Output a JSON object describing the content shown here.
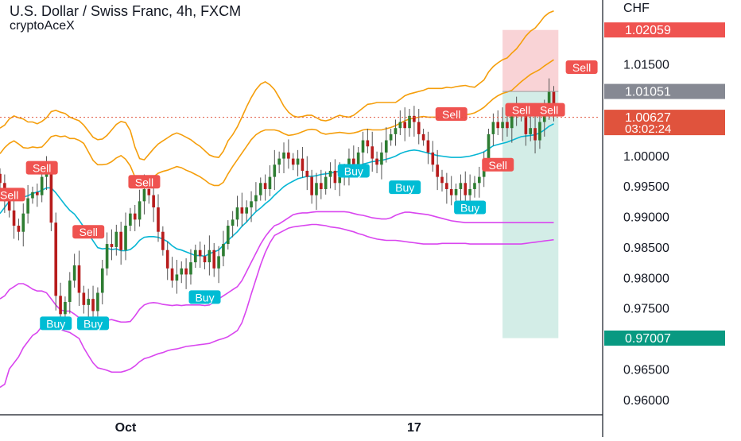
{
  "header": {
    "title": "U.S. Dollar / Swiss Franc, 4h, FXCM",
    "author": "cryptoAceX",
    "currency": "CHF"
  },
  "colors": {
    "up": "#26a69a",
    "down": "#ef5350",
    "candle": "#2e7d32",
    "candle_down": "#b71c1c",
    "upper_band": "#f59e0b",
    "mid_band": "#06b6d4",
    "lower_band": "#d946ef",
    "sell_tag": "#ef5350",
    "buy_tag": "#00bcd4",
    "stop_zone": "#f8c8cc",
    "target_zone": "#c8e9e1"
  },
  "chart_data": {
    "type": "candlestick",
    "ylim": [
      0.9575,
      1.0255
    ],
    "xlim": [
      0,
      129
    ],
    "y_ticks": [
      0.96,
      0.965,
      0.97,
      0.975,
      0.98,
      0.985,
      0.99,
      0.995,
      1.0,
      1.005,
      1.01,
      1.015,
      1.02
    ],
    "y_tick_labels": [
      "0.96000",
      "0.96500",
      "0.97000",
      "0.97500",
      "0.98000",
      "0.98500",
      "0.99000",
      "0.99500",
      "1.00000",
      "",
      "",
      "1.01500",
      ""
    ],
    "x_tick_labels": [
      {
        "label": "Oct",
        "x": 27
      },
      {
        "label": "17",
        "x": 89
      }
    ],
    "price_labels": [
      {
        "value": 1.02059,
        "text": "1.02059",
        "color": "#ef5350"
      },
      {
        "value": 1.01051,
        "text": "1.01051",
        "color": "#868993"
      },
      {
        "value": 1.00627,
        "text": "1.00627",
        "extra": "03:02:24",
        "color": "#e0533d"
      },
      {
        "value": 0.97007,
        "text": "0.97007",
        "color": "#089981"
      }
    ],
    "current_price": 1.00627,
    "position": {
      "x_start": 108,
      "x_end": 120,
      "entry": 1.01051,
      "stop": 1.02059,
      "target": 0.97007
    },
    "close": [
      0.9955,
      0.9925,
      0.991,
      0.9885,
      0.9875,
      0.9905,
      0.993,
      0.994,
      0.9935,
      0.9965,
      0.9975,
      0.989,
      0.977,
      0.974,
      0.976,
      0.9795,
      0.982,
      0.9775,
      0.9755,
      0.9765,
      0.9745,
      0.9775,
      0.9815,
      0.9855,
      0.985,
      0.9875,
      0.9845,
      0.9885,
      0.9905,
      0.9895,
      0.9925,
      0.9945,
      0.9935,
      0.9915,
      0.9875,
      0.9845,
      0.9815,
      0.9795,
      0.9805,
      0.9815,
      0.9805,
      0.9825,
      0.9845,
      0.9835,
      0.9825,
      0.9845,
      0.9815,
      0.9835,
      0.9855,
      0.9885,
      0.9895,
      0.9915,
      0.9905,
      0.9915,
      0.9925,
      0.9935,
      0.9955,
      0.9945,
      0.9965,
      0.9985,
      0.9995,
      1.0005,
      0.9995,
      0.9985,
      0.9995,
      0.9975,
      0.9965,
      0.9935,
      0.9955,
      0.9945,
      0.9965,
      0.9975,
      0.9955,
      0.9965,
      0.9975,
      0.9995,
      0.9985,
      1.0005,
      1.0025,
      1.0015,
      0.9995,
      0.9985,
      1.0005,
      1.0025,
      1.0035,
      1.0045,
      1.0055,
      1.0045,
      1.0065,
      1.0055,
      1.0035,
      1.0025,
      1.0005,
      0.9985,
      0.9965,
      0.9955,
      0.9945,
      0.9935,
      0.9945,
      0.9955,
      0.9935,
      0.9945,
      0.9955,
      0.9965,
      0.9985,
      1.0035,
      1.0055,
      1.0045,
      1.0055,
      1.0045,
      1.0065,
      1.0075,
      1.0065,
      1.0035,
      1.0045,
      1.0025,
      1.0055,
      1.0075,
      1.0105,
      1.0065
    ]
  },
  "bands": {
    "upper": [
      1.0045,
      1.005,
      1.006,
      1.0065,
      1.0062,
      1.006,
      1.0055,
      1.0055,
      1.0052,
      1.0056,
      1.0062,
      1.0072,
      1.0074,
      1.0071,
      1.0069,
      1.0063,
      1.006,
      1.0057,
      1.005,
      1.004,
      1.003,
      1.0026,
      1.0027,
      1.0033,
      1.0042,
      1.0051,
      1.0056,
      1.0054,
      1.0041,
      1.0014,
      0.9995,
      0.9993,
      1.0002,
      1.0011,
      1.0019,
      1.0024,
      1.0029,
      1.0034,
      1.0037,
      1.0034,
      1.003,
      1.0026,
      1.002,
      1.0015,
      1.0008,
      1.0001,
      0.9998,
      0.9997,
      1.0007,
      1.0024,
      1.0034,
      1.0047,
      1.0063,
      1.008,
      1.0095,
      1.0108,
      1.0117,
      1.0121,
      1.0116,
      1.0108,
      1.0095,
      1.0081,
      1.0071,
      1.0065,
      1.0063,
      1.0064,
      1.0066,
      1.0066,
      1.0062,
      1.0058,
      1.0057,
      1.0059,
      1.0063,
      1.0066,
      1.0064,
      1.0063,
      1.0066,
      1.0072,
      1.0078,
      1.0084,
      1.0085,
      1.0087,
      1.0087,
      1.0087,
      1.0087,
      1.0087,
      1.0092,
      1.0098,
      1.0101,
      1.0103,
      1.0105,
      1.0107,
      1.011,
      1.011,
      1.011,
      1.011,
      1.0112,
      1.0111,
      1.0113,
      1.0114,
      1.0115,
      1.0113,
      1.0112,
      1.0118,
      1.0124,
      1.0137,
      1.0146,
      1.0152,
      1.0157,
      1.016,
      1.0168,
      1.0175,
      1.0185,
      1.0196,
      1.0204,
      1.0209,
      1.0218,
      1.0228,
      1.0234,
      1.0237
    ],
    "lower_upper": [
      1.0003,
      1.0013,
      1.002,
      1.0024,
      1.0019,
      1.0013,
      1.0012,
      1.0014,
      1.0013,
      1.0014,
      1.0022,
      1.0031,
      1.0033,
      1.0031,
      1.0032,
      1.0028,
      1.0028,
      1.0025,
      1.002,
      1.0006,
      0.9992,
      0.9985,
      0.9985,
      0.9986,
      0.999,
      0.9996,
      1.0,
      0.9994,
      0.9983,
      0.9965,
      0.9949,
      0.9948,
      0.9956,
      0.9965,
      0.9971,
      0.9974,
      0.9976,
      0.9979,
      0.9982,
      0.998,
      0.9976,
      0.9973,
      0.9969,
      0.9965,
      0.996,
      0.9954,
      0.9951,
      0.9951,
      0.9956,
      0.997,
      0.9982,
      0.9993,
      1.0004,
      1.0015,
      1.0026,
      1.0034,
      1.0039,
      1.0042,
      1.0042,
      1.0042,
      1.004,
      1.0036,
      1.0033,
      1.0034,
      1.0036,
      1.0039,
      1.0042,
      1.0043,
      1.0042,
      1.0037,
      1.0035,
      1.0036,
      1.0037,
      1.0038,
      1.0037,
      1.0036,
      1.0037,
      1.0039,
      1.0042,
      1.0043,
      1.0042,
      1.0042,
      1.0042,
      1.0044,
      1.0046,
      1.0049,
      1.0053,
      1.0057,
      1.006,
      1.0061,
      1.0063,
      1.0064,
      1.0063,
      1.0063,
      1.0063,
      1.0064,
      1.0065,
      1.0066,
      1.0066,
      1.0066,
      1.0067,
      1.0068,
      1.007,
      1.0074,
      1.0079,
      1.0086,
      1.0093,
      1.0098,
      1.0102,
      1.0104,
      1.0107,
      1.0114,
      1.0121,
      1.0127,
      1.0133,
      1.0137,
      1.0141,
      1.0147,
      1.0152,
      1.0157
    ],
    "mid": [
      0.9905,
      0.9915,
      0.9925,
      0.993,
      0.9932,
      0.9932,
      0.9934,
      0.9938,
      0.994,
      0.9943,
      0.9947,
      0.9947,
      0.9939,
      0.9929,
      0.9919,
      0.991,
      0.9904,
      0.9894,
      0.9883,
      0.9872,
      0.986,
      0.9849,
      0.9847,
      0.9848,
      0.9846,
      0.9847,
      0.9844,
      0.9844,
      0.9846,
      0.9852,
      0.9861,
      0.9866,
      0.9867,
      0.9867,
      0.9866,
      0.9863,
      0.9859,
      0.9852,
      0.9847,
      0.9845,
      0.9842,
      0.9839,
      0.9836,
      0.9836,
      0.9835,
      0.9839,
      0.9842,
      0.9845,
      0.9853,
      0.9861,
      0.9868,
      0.9875,
      0.9884,
      0.9891,
      0.99,
      0.9908,
      0.9914,
      0.9921,
      0.9927,
      0.9935,
      0.9942,
      0.9949,
      0.9954,
      0.9958,
      0.9962,
      0.9964,
      0.9966,
      0.9966,
      0.9967,
      0.9969,
      0.997,
      0.9971,
      0.9973,
      0.9974,
      0.9976,
      0.9978,
      0.998,
      0.9983,
      0.9986,
      0.9988,
      0.999,
      0.9991,
      0.9992,
      0.9994,
      0.9996,
      0.9999,
      1.0003,
      1.0006,
      1.0008,
      1.0009,
      1.0008,
      1.0006,
      1.0004,
      1.0002,
      1.0,
      0.9999,
      0.9998,
      0.9997,
      0.9997,
      0.9997,
      0.9998,
      0.9999,
      1.0001,
      1.0003,
      1.0006,
      1.0011,
      1.0016,
      1.0018,
      1.002,
      1.0022,
      1.0025,
      1.0028,
      1.0031,
      1.0032,
      1.0033,
      1.0034,
      1.0037,
      1.0042,
      1.0048,
      1.0052
    ],
    "upper_lower": [
      0.9765,
      0.977,
      0.978,
      0.9785,
      0.979,
      0.979,
      0.9786,
      0.9781,
      0.9778,
      0.9778,
      0.9775,
      0.9765,
      0.9755,
      0.9747,
      0.9745,
      0.9745,
      0.974,
      0.9734,
      0.9727,
      0.9723,
      0.9723,
      0.9724,
      0.9727,
      0.973,
      0.9731,
      0.9729,
      0.9727,
      0.9727,
      0.9728,
      0.9737,
      0.9748,
      0.9755,
      0.9758,
      0.9759,
      0.9758,
      0.9756,
      0.9755,
      0.9754,
      0.9755,
      0.9754,
      0.9755,
      0.9755,
      0.9755,
      0.9755,
      0.9754,
      0.9755,
      0.976,
      0.9765,
      0.977,
      0.9775,
      0.978,
      0.9785,
      0.9795,
      0.981,
      0.9825,
      0.984,
      0.9855,
      0.9867,
      0.9877,
      0.9885,
      0.9888,
      0.9893,
      0.9898,
      0.9903,
      0.9905,
      0.9906,
      0.9906,
      0.9907,
      0.9908,
      0.9908,
      0.9908,
      0.9908,
      0.9908,
      0.9908,
      0.9908,
      0.9907,
      0.9905,
      0.9903,
      0.9902,
      0.99,
      0.9898,
      0.9897,
      0.9896,
      0.9896,
      0.9898,
      0.9902,
      0.9905,
      0.9907,
      0.9907,
      0.9906,
      0.9905,
      0.9904,
      0.9903,
      0.9901,
      0.9899,
      0.9897,
      0.9895,
      0.9893,
      0.9892,
      0.9891,
      0.989,
      0.989,
      0.989,
      0.989,
      0.989,
      0.989,
      0.989,
      0.989,
      0.989,
      0.989,
      0.989,
      0.989,
      0.989,
      0.989,
      0.989,
      0.989,
      0.989,
      0.989,
      0.989,
      0.989
    ],
    "lower": [
      0.962,
      0.9625,
      0.965,
      0.966,
      0.967,
      0.9685,
      0.9695,
      0.9705,
      0.971,
      0.972,
      0.973,
      0.973,
      0.972,
      0.9715,
      0.9712,
      0.971,
      0.9705,
      0.97,
      0.9685,
      0.9672,
      0.966,
      0.9652,
      0.965,
      0.9648,
      0.9645,
      0.9645,
      0.9645,
      0.9647,
      0.965,
      0.9655,
      0.9662,
      0.9667,
      0.9669,
      0.9672,
      0.9675,
      0.9677,
      0.968,
      0.9682,
      0.9683,
      0.9685,
      0.9687,
      0.9688,
      0.9689,
      0.969,
      0.9691,
      0.9692,
      0.9695,
      0.9698,
      0.97,
      0.9703,
      0.9708,
      0.9713,
      0.9726,
      0.9748,
      0.9773,
      0.9797,
      0.9821,
      0.9841,
      0.9857,
      0.9869,
      0.9873,
      0.9877,
      0.9881,
      0.9883,
      0.9884,
      0.9885,
      0.9886,
      0.9887,
      0.9887,
      0.9886,
      0.9885,
      0.9883,
      0.9882,
      0.9881,
      0.9879,
      0.9877,
      0.9875,
      0.9872,
      0.987,
      0.9867,
      0.9865,
      0.9863,
      0.9862,
      0.9861,
      0.9861,
      0.9861,
      0.986,
      0.9859,
      0.9858,
      0.9857,
      0.9856,
      0.9855,
      0.9855,
      0.9855,
      0.9855,
      0.9856,
      0.9856,
      0.9856,
      0.9856,
      0.9856,
      0.9856,
      0.9855,
      0.9855,
      0.9855,
      0.9855,
      0.9855,
      0.9855,
      0.9855,
      0.9855,
      0.9855,
      0.9855,
      0.9855,
      0.9855,
      0.9856,
      0.9857,
      0.9858,
      0.9859,
      0.986,
      0.9861,
      0.9862
    ]
  },
  "signals": [
    {
      "label": "Sell",
      "type": "sell",
      "x": 9,
      "y": 0.998
    },
    {
      "label": "Sell",
      "type": "sell",
      "x": 2,
      "y": 0.9936
    },
    {
      "label": "Sell",
      "type": "sell",
      "x": 19,
      "y": 0.9875
    },
    {
      "label": "Sell",
      "type": "sell",
      "x": 31,
      "y": 0.9957
    },
    {
      "label": "Buy",
      "type": "buy",
      "x": 12,
      "y": 0.9725
    },
    {
      "label": "Buy",
      "type": "buy",
      "x": 20,
      "y": 0.9725
    },
    {
      "label": "Buy",
      "type": "buy",
      "x": 44,
      "y": 0.9768
    },
    {
      "label": "Buy",
      "type": "buy",
      "x": 76,
      "y": 0.9975
    },
    {
      "label": "Buy",
      "type": "buy",
      "x": 87,
      "y": 0.9948
    },
    {
      "label": "Buy",
      "type": "buy",
      "x": 101,
      "y": 0.9915
    },
    {
      "label": "Sell",
      "type": "sell",
      "x": 97,
      "y": 1.0068
    },
    {
      "label": "Sell",
      "type": "sell",
      "x": 107,
      "y": 0.9985
    },
    {
      "label": "Sell",
      "type": "sell",
      "x": 112,
      "y": 1.0075
    },
    {
      "label": "Sell",
      "type": "sell",
      "x": 118,
      "y": 1.0075
    },
    {
      "label": "Sell",
      "type": "sell",
      "x": 125,
      "y": 1.0145
    }
  ]
}
